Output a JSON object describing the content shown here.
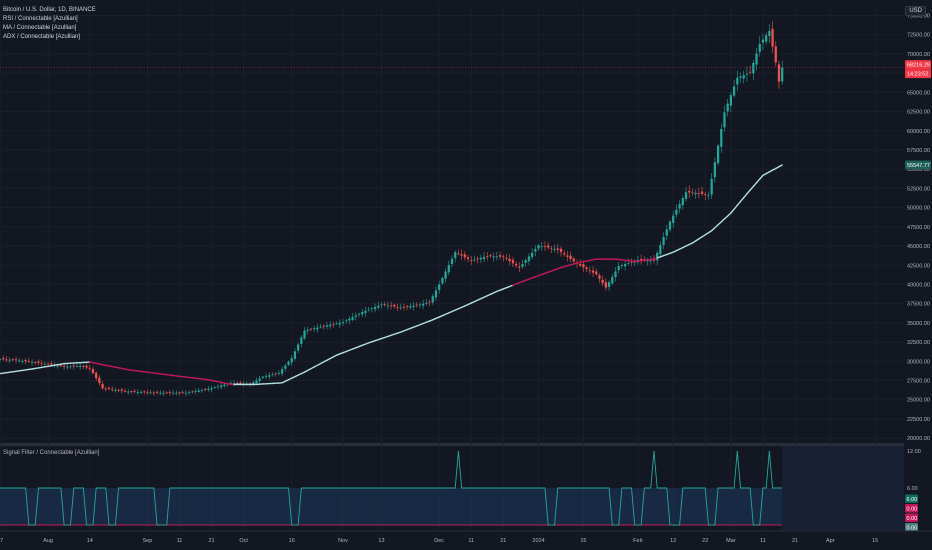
{
  "header": {
    "symbol_line": "Bitcoin / U.S. Dollar, 1D, BINANCE",
    "indicators": [
      "RSI / Connectable [Azullian]",
      "MA / Connectable [Azullian]",
      "ADX / Connectable [Azullian]"
    ],
    "currency_button": "USD"
  },
  "colors": {
    "background": "#131722",
    "up": "#26a69a",
    "down": "#ef5350",
    "ma_bull": "#b2dfdb",
    "ma_bear": "#c2185b",
    "price_label": "#f23645",
    "ma_label": "#26a69a",
    "signal_line": "#26a69a",
    "signal_fill": "#1e3a5f"
  },
  "subpane": {
    "title": "Signal Filter / Connectable [Azullian]",
    "badges": [
      {
        "text": "6.00",
        "color": "#0e6b5e"
      },
      {
        "text": "0.00",
        "color": "#c2185b"
      },
      {
        "text": "0.00",
        "color": "#c2185b"
      },
      {
        "text": "0.00",
        "color": "#4c7e80"
      }
    ],
    "axis_labels": [
      "12.00",
      "6.00"
    ]
  },
  "chart_data": {
    "type": "candlestick",
    "symbol": "BTCUSD",
    "interval": "1D",
    "price_labels": {
      "last_price": "68216.29",
      "countdown": "14:23:52",
      "ma_value": "55547.77"
    },
    "y_ticks": [
      "75000.00",
      "72500.00",
      "70000.00",
      "67500.00",
      "65000.00",
      "62500.00",
      "60000.00",
      "57500.00",
      "55000.00",
      "52500.00",
      "50000.00",
      "47500.00",
      "45000.00",
      "42500.00",
      "40000.00",
      "37500.00",
      "35000.00",
      "32500.00",
      "30000.00",
      "27500.00",
      "25000.00",
      "22500.00",
      "20000.00"
    ],
    "x_ticks": [
      {
        "label": "17",
        "day": 0
      },
      {
        "label": "Aug",
        "day": 15
      },
      {
        "label": "14",
        "day": 28
      },
      {
        "label": "Sep",
        "day": 46
      },
      {
        "label": "11",
        "day": 56
      },
      {
        "label": "21",
        "day": 66
      },
      {
        "label": "Oct",
        "day": 76
      },
      {
        "label": "16",
        "day": 91
      },
      {
        "label": "Nov",
        "day": 107
      },
      {
        "label": "13",
        "day": 119
      },
      {
        "label": "Dec",
        "day": 137
      },
      {
        "label": "11",
        "day": 147
      },
      {
        "label": "21",
        "day": 157
      },
      {
        "label": "2024",
        "day": 168
      },
      {
        "label": "15",
        "day": 182
      },
      {
        "label": "Feb",
        "day": 199
      },
      {
        "label": "12",
        "day": 210
      },
      {
        "label": "22",
        "day": 220
      },
      {
        "label": "Mar",
        "day": 228
      },
      {
        "label": "11",
        "day": 238
      },
      {
        "label": "21",
        "day": 248
      },
      {
        "label": "Apr",
        "day": 259
      },
      {
        "label": "15",
        "day": 273
      }
    ],
    "x_range_days": [
      0,
      282
    ],
    "y_range": [
      19500,
      76500
    ],
    "price_path": [
      [
        0,
        30300
      ],
      [
        6,
        30100
      ],
      [
        12,
        29800
      ],
      [
        20,
        29300
      ],
      [
        25,
        29400
      ],
      [
        28,
        29100
      ],
      [
        32,
        26500
      ],
      [
        40,
        26050
      ],
      [
        50,
        25900
      ],
      [
        58,
        25900
      ],
      [
        66,
        26500
      ],
      [
        72,
        27200
      ],
      [
        78,
        27000
      ],
      [
        82,
        28000
      ],
      [
        87,
        28500
      ],
      [
        91,
        30400
      ],
      [
        95,
        34000
      ],
      [
        100,
        34500
      ],
      [
        107,
        35100
      ],
      [
        113,
        36400
      ],
      [
        119,
        37400
      ],
      [
        125,
        37000
      ],
      [
        130,
        37300
      ],
      [
        134,
        37700
      ],
      [
        137,
        40000
      ],
      [
        142,
        44200
      ],
      [
        147,
        43100
      ],
      [
        152,
        43700
      ],
      [
        157,
        43600
      ],
      [
        162,
        42200
      ],
      [
        168,
        45100
      ],
      [
        174,
        44500
      ],
      [
        180,
        42700
      ],
      [
        186,
        41300
      ],
      [
        189,
        39600
      ],
      [
        193,
        42400
      ],
      [
        199,
        43200
      ],
      [
        204,
        43100
      ],
      [
        209,
        48200
      ],
      [
        214,
        52000
      ],
      [
        218,
        51900
      ],
      [
        221,
        51600
      ],
      [
        226,
        62400
      ],
      [
        230,
        66900
      ],
      [
        234,
        67600
      ],
      [
        237,
        71300
      ],
      [
        240,
        73000
      ],
      [
        242,
        68900
      ],
      [
        243,
        66400
      ],
      [
        244,
        68216
      ]
    ],
    "ma_path": [
      [
        0,
        28400
      ],
      [
        10,
        29000
      ],
      [
        20,
        29700
      ],
      [
        28,
        29900
      ],
      [
        40,
        28900
      ],
      [
        55,
        28100
      ],
      [
        65,
        27600
      ],
      [
        72,
        27000
      ],
      [
        80,
        27000
      ],
      [
        88,
        27200
      ],
      [
        95,
        28600
      ],
      [
        105,
        30800
      ],
      [
        115,
        32400
      ],
      [
        125,
        33800
      ],
      [
        135,
        35400
      ],
      [
        145,
        37200
      ],
      [
        155,
        39100
      ],
      [
        165,
        40700
      ],
      [
        175,
        42200
      ],
      [
        180,
        42800
      ],
      [
        186,
        43300
      ],
      [
        192,
        43300
      ],
      [
        198,
        43000
      ],
      [
        204,
        43300
      ],
      [
        210,
        44200
      ],
      [
        216,
        45400
      ],
      [
        222,
        47000
      ],
      [
        228,
        49300
      ],
      [
        233,
        51800
      ],
      [
        238,
        54200
      ],
      [
        244,
        55548
      ]
    ],
    "ma_bearish_spans": [
      [
        28,
        72
      ],
      [
        160,
        204
      ]
    ],
    "signal_path": [
      [
        0,
        6
      ],
      [
        8,
        6
      ],
      [
        9,
        0
      ],
      [
        11,
        0
      ],
      [
        12,
        6
      ],
      [
        19,
        6
      ],
      [
        20,
        0
      ],
      [
        22,
        0
      ],
      [
        23,
        6
      ],
      [
        26,
        6
      ],
      [
        27,
        0
      ],
      [
        29,
        0
      ],
      [
        30,
        6
      ],
      [
        33,
        6
      ],
      [
        34,
        0
      ],
      [
        36,
        0
      ],
      [
        37,
        6
      ],
      [
        48,
        6
      ],
      [
        49,
        0
      ],
      [
        52,
        0
      ],
      [
        53,
        6
      ],
      [
        90,
        6
      ],
      [
        91,
        0
      ],
      [
        93,
        0
      ],
      [
        94,
        6
      ],
      [
        142,
        6
      ],
      [
        143,
        12
      ],
      [
        144,
        6
      ],
      [
        170,
        6
      ],
      [
        171,
        0
      ],
      [
        173,
        0
      ],
      [
        174,
        6
      ],
      [
        190,
        6
      ],
      [
        191,
        0
      ],
      [
        193,
        0
      ],
      [
        194,
        6
      ],
      [
        197,
        6
      ],
      [
        198,
        0
      ],
      [
        200,
        0
      ],
      [
        201,
        6
      ],
      [
        203,
        6
      ],
      [
        204,
        12
      ],
      [
        205,
        6
      ],
      [
        208,
        6
      ],
      [
        209,
        0
      ],
      [
        212,
        0
      ],
      [
        213,
        6
      ],
      [
        220,
        6
      ],
      [
        221,
        0
      ],
      [
        223,
        0
      ],
      [
        224,
        6
      ],
      [
        229,
        6
      ],
      [
        230,
        12
      ],
      [
        231,
        6
      ],
      [
        234,
        6
      ],
      [
        235,
        0
      ],
      [
        237,
        0
      ],
      [
        238,
        6
      ],
      [
        239,
        6
      ],
      [
        240,
        12
      ],
      [
        241,
        6
      ],
      [
        244,
        6
      ]
    ],
    "signal_range": [
      -0.8,
      12.8
    ]
  }
}
